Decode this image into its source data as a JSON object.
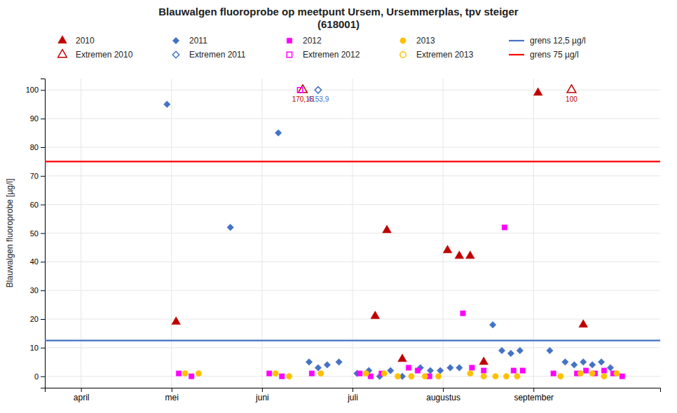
{
  "chart_data": {
    "type": "scatter",
    "title": "Blauwalgen fluoroprobe op meetpunt Ursem, Ursemmerplas, tpv steiger\n(618001)",
    "y_label": "Blauwalgen fluoroprobe [µg/l]",
    "xlim": [
      3.6,
      10.4
    ],
    "xticks": [
      {
        "value": 4,
        "label": "april"
      },
      {
        "value": 5,
        "label": "mei"
      },
      {
        "value": 6,
        "label": "juni"
      },
      {
        "value": 7,
        "label": "juli"
      },
      {
        "value": 8,
        "label": "augustus"
      },
      {
        "value": 9,
        "label": "september"
      }
    ],
    "ylim": [
      -4,
      104
    ],
    "yticks": [
      0,
      10,
      20,
      30,
      40,
      50,
      60,
      70,
      80,
      90,
      100
    ],
    "grid": true,
    "legend": "top",
    "series": [
      {
        "name": "2010",
        "color": "#c00000",
        "marker": "triangle",
        "x": [
          5.05,
          7.25,
          7.38,
          7.55,
          8.05,
          8.18,
          8.3,
          8.45,
          9.05,
          9.55
        ],
        "values": [
          19,
          21,
          51,
          6,
          44,
          42,
          42,
          5,
          99,
          18
        ]
      },
      {
        "name": "2011",
        "color": "#4472c4",
        "marker": "diamond",
        "x": [
          4.95,
          5.65,
          6.18,
          6.52,
          6.62,
          6.72,
          6.85,
          7.05,
          7.18,
          7.3,
          7.42,
          7.55,
          7.75,
          7.86,
          7.97,
          8.08,
          8.18,
          8.55,
          8.65,
          8.75,
          8.85,
          9.18,
          9.35,
          9.45,
          9.55,
          9.65,
          9.75,
          9.85
        ],
        "values": [
          95,
          52,
          85,
          5,
          3,
          4,
          5,
          1,
          2,
          0,
          2,
          0,
          3,
          2,
          2,
          3,
          3,
          18,
          9,
          8,
          9,
          9,
          5,
          4,
          5,
          4,
          5,
          3
        ]
      },
      {
        "name": "2012",
        "color": "#ff00ff",
        "marker": "square",
        "x": [
          5.08,
          5.22,
          6.08,
          6.22,
          6.55,
          7.08,
          7.2,
          7.32,
          7.62,
          7.72,
          7.85,
          8.22,
          8.32,
          8.45,
          8.68,
          8.78,
          8.88,
          9.22,
          9.48,
          9.58,
          9.68,
          9.78,
          9.88,
          9.98
        ],
        "values": [
          1,
          0,
          1,
          0,
          1,
          1,
          0,
          1,
          3,
          2,
          0,
          22,
          3,
          2,
          52,
          2,
          2,
          1,
          1,
          2,
          1,
          2,
          1,
          0
        ]
      },
      {
        "name": "2013",
        "color": "#ffc000",
        "marker": "circle",
        "x": [
          5.15,
          5.3,
          6.15,
          6.3,
          6.65,
          7.15,
          7.35,
          7.5,
          7.65,
          7.8,
          7.95,
          8.3,
          8.45,
          8.58,
          8.7,
          8.82,
          9.3,
          9.52,
          9.65,
          9.78,
          9.92
        ],
        "values": [
          1,
          1,
          1,
          0,
          1,
          1,
          1,
          0,
          0,
          0,
          0,
          1,
          0,
          0,
          0,
          0,
          0,
          1,
          1,
          0,
          1
        ]
      },
      {
        "name": "grens 12,5 µg/l",
        "type": "hline",
        "color": "#4472c4",
        "line_style": "solid",
        "values": [
          12.5
        ]
      },
      {
        "name": "Extremen 2010",
        "color": "#c00000",
        "marker": "triangle-open",
        "x": [
          6.45,
          9.42
        ],
        "values": [
          100,
          100
        ],
        "annotations": [
          "170,15",
          "100"
        ]
      },
      {
        "name": "Extremen 2011",
        "color": "#4472c4",
        "marker": "diamond-open",
        "x": [
          6.62
        ],
        "values": [
          100
        ],
        "annotations": [
          "4153,9"
        ]
      },
      {
        "name": "Extremen 2012",
        "color": "#ff00ff",
        "marker": "square-open",
        "x": [
          6.42
        ],
        "values": [
          100
        ]
      },
      {
        "name": "Extremen 2013",
        "color": "#ffc000",
        "marker": "circle-open",
        "x": [],
        "values": []
      },
      {
        "name": "grens 75 µg/l",
        "type": "hline",
        "color": "#ff0000",
        "line_style": "solid",
        "values": [
          75
        ]
      }
    ]
  }
}
